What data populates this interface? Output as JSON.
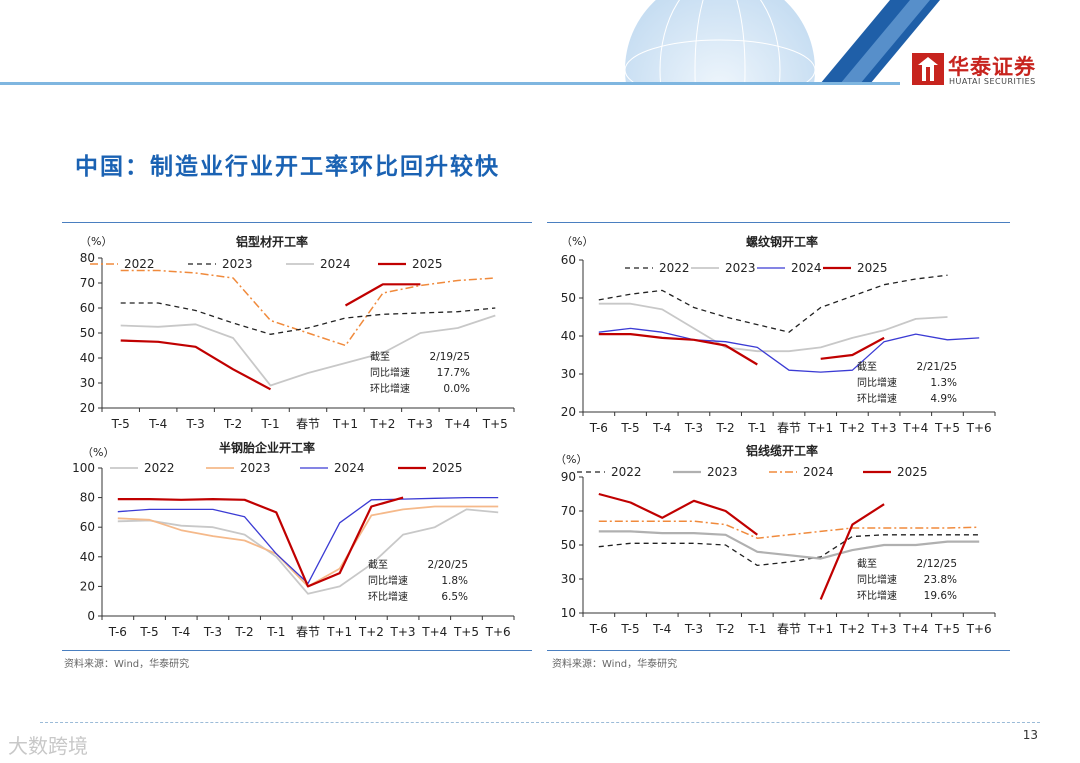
{
  "header": {
    "logo_cn": "华泰证券",
    "logo_en": "HUATAI SECURITIES",
    "brand_color": "#c7241e"
  },
  "page_title": "中国：制造业行业开工率环比回升较快",
  "sources": [
    "资料来源：Wind，华泰研究",
    "资料来源：Wind，华泰研究"
  ],
  "page_number": "13",
  "watermark": "大数跨境",
  "chart_data": [
    {
      "type": "line",
      "title": "铝型材开工率",
      "unit": "（%）",
      "categories": [
        "T-5",
        "T-4",
        "T-3",
        "T-2",
        "T-1",
        "春节",
        "T+1",
        "T+2",
        "T+3",
        "T+4",
        "T+5"
      ],
      "ylim": [
        20,
        80
      ],
      "yticks": [
        20,
        30,
        40,
        50,
        60,
        70,
        80
      ],
      "legend": "top",
      "series": [
        {
          "name": "2022",
          "color": "#f08a3c",
          "dash": "8,3,2,3",
          "width": 1.5,
          "values": [
            75,
            75,
            74,
            72,
            55,
            50,
            45,
            66,
            69,
            71,
            72
          ]
        },
        {
          "name": "2023",
          "color": "#222222",
          "dash": "5,4",
          "width": 1.3,
          "values": [
            62,
            62,
            59,
            54,
            49.5,
            52,
            56,
            57.5,
            58,
            58.5,
            60
          ]
        },
        {
          "name": "2024",
          "color": "#c8c8c8",
          "dash": "",
          "width": 1.8,
          "values": [
            53,
            52.5,
            53.5,
            48,
            29,
            34,
            38,
            42,
            50,
            52,
            57
          ]
        },
        {
          "name": "2025",
          "color": "#c00000",
          "dash": "",
          "width": 2.2,
          "values": [
            47,
            46.5,
            44.5,
            35.5,
            27.5,
            null,
            61,
            69.5,
            69.5,
            null,
            null
          ]
        }
      ],
      "annotation": [
        [
          "截至",
          "2/19/25"
        ],
        [
          "同比增速",
          "17.7%"
        ],
        [
          "环比增速",
          "0.0%"
        ]
      ]
    },
    {
      "type": "line",
      "title": "螺纹钢开工率",
      "unit": "（%）",
      "categories": [
        "T-6",
        "T-5",
        "T-4",
        "T-3",
        "T-2",
        "T-1",
        "春节",
        "T+1",
        "T+2",
        "T+3",
        "T+4",
        "T+5",
        "T+6"
      ],
      "ylim": [
        20,
        60
      ],
      "yticks": [
        20,
        30,
        40,
        50,
        60
      ],
      "legend": "top",
      "series": [
        {
          "name": "2022",
          "color": "#222222",
          "dash": "5,4",
          "width": 1.3,
          "values": [
            49.5,
            51,
            52,
            47.5,
            45,
            43,
            41,
            47.5,
            50.5,
            53.5,
            55,
            56,
            null
          ]
        },
        {
          "name": "2023",
          "color": "#c8c8c8",
          "dash": "",
          "width": 1.8,
          "values": [
            48.5,
            48.5,
            47,
            42,
            37,
            36,
            36,
            37,
            39.5,
            41.5,
            44.5,
            45,
            null
          ]
        },
        {
          "name": "2024",
          "color": "#3b3bd4",
          "dash": "",
          "width": 1.3,
          "values": [
            41,
            42,
            41,
            39,
            38.5,
            37,
            31,
            30.5,
            31,
            38.5,
            40.5,
            39,
            39.5
          ]
        },
        {
          "name": "2025",
          "color": "#c00000",
          "dash": "",
          "width": 2.2,
          "values": [
            40.5,
            40.5,
            39.5,
            39,
            37.5,
            32.5,
            null,
            34,
            35,
            39.5,
            null,
            null,
            null
          ]
        }
      ],
      "annotation": [
        [
          "截至",
          "2/21/25"
        ],
        [
          "同比增速",
          "1.3%"
        ],
        [
          "环比增速",
          "4.9%"
        ]
      ]
    },
    {
      "type": "line",
      "title": "半钢胎企业开工率",
      "unit": "（%）",
      "categories": [
        "T-6",
        "T-5",
        "T-4",
        "T-3",
        "T-2",
        "T-1",
        "春节",
        "T+1",
        "T+2",
        "T+3",
        "T+4",
        "T+5",
        "T+6"
      ],
      "ylim": [
        0,
        100
      ],
      "yticks": [
        0,
        20,
        40,
        60,
        80,
        100
      ],
      "legend": "top",
      "series": [
        {
          "name": "2022",
          "color": "#c8c8c8",
          "dash": "",
          "width": 1.8,
          "values": [
            64,
            64.5,
            61,
            60,
            55,
            40,
            15,
            20,
            35,
            55,
            60,
            72,
            70
          ]
        },
        {
          "name": "2023",
          "color": "#f5b98a",
          "dash": "",
          "width": 1.8,
          "values": [
            66,
            65,
            58,
            54,
            51,
            42,
            20,
            32,
            68,
            72,
            74,
            74,
            74
          ]
        },
        {
          "name": "2024",
          "color": "#3b3bd4",
          "dash": "",
          "width": 1.3,
          "values": [
            70.5,
            72,
            72,
            72,
            67,
            42,
            22,
            63,
            78.5,
            79,
            79.5,
            80,
            80
          ]
        },
        {
          "name": "2025",
          "color": "#c00000",
          "dash": "",
          "width": 2.2,
          "values": [
            79,
            79,
            78.5,
            79,
            78.5,
            70,
            20,
            29,
            74,
            80,
            null,
            null,
            null
          ]
        }
      ],
      "annotation": [
        [
          "截至",
          "2/20/25"
        ],
        [
          "同比增速",
          "1.8%"
        ],
        [
          "环比增速",
          "6.5%"
        ]
      ]
    },
    {
      "type": "line",
      "title": "铝线缆开工率",
      "unit": "（%）",
      "categories": [
        "T-6",
        "T-5",
        "T-4",
        "T-3",
        "T-2",
        "T-1",
        "春节",
        "T+1",
        "T+2",
        "T+3",
        "T+4",
        "T+5",
        "T+6"
      ],
      "ylim": [
        10,
        90
      ],
      "yticks": [
        10,
        30,
        50,
        70,
        90
      ],
      "legend": "top",
      "series": [
        {
          "name": "2022",
          "color": "#222222",
          "dash": "5,4",
          "width": 1.3,
          "values": [
            49,
            51,
            51,
            51,
            50,
            38,
            40,
            43,
            55,
            56,
            56,
            56,
            56
          ]
        },
        {
          "name": "2023",
          "color": "#b0b0b0",
          "dash": "",
          "width": 2.2,
          "values": [
            58,
            58,
            57,
            57,
            56,
            46,
            44,
            42,
            47,
            50,
            50,
            52,
            52
          ]
        },
        {
          "name": "2024",
          "color": "#f08a3c",
          "dash": "8,3,2,3",
          "width": 1.5,
          "values": [
            64,
            64,
            64,
            64,
            62,
            54,
            56,
            58,
            60,
            60,
            60,
            60,
            60.5
          ]
        },
        {
          "name": "2025",
          "color": "#c00000",
          "dash": "",
          "width": 2.2,
          "values": [
            80,
            75,
            66,
            76,
            70,
            56,
            null,
            18,
            62,
            74,
            null,
            null,
            null
          ]
        }
      ],
      "annotation": [
        [
          "截至",
          "2/12/25"
        ],
        [
          "同比增速",
          "23.8%"
        ],
        [
          "环比增速",
          "19.6%"
        ]
      ]
    }
  ]
}
